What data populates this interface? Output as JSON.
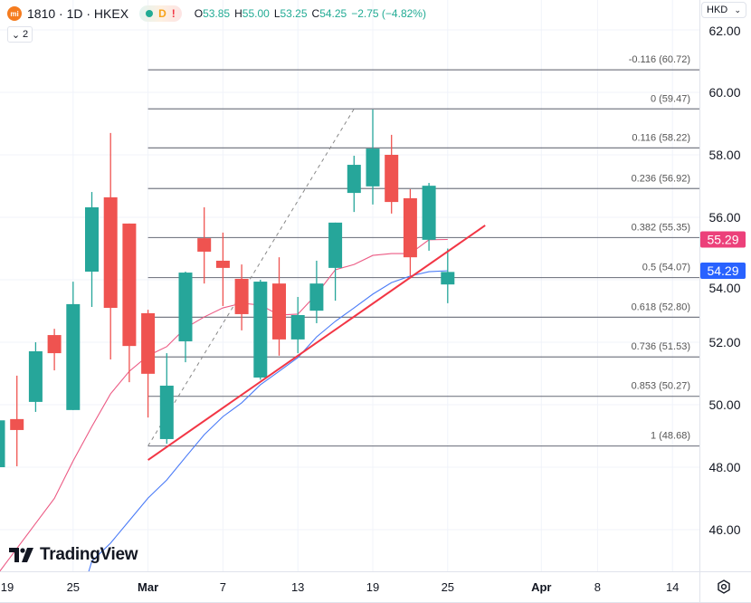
{
  "header": {
    "logo_text": "mi",
    "symbol": "1810 · 1D · HKEX",
    "status_badges": [
      "market-open-dot",
      "D",
      "!"
    ],
    "ohlc": {
      "o_label": "O",
      "o": "53.85",
      "h_label": "H",
      "h": "55.00",
      "l_label": "L",
      "l": "53.25",
      "c_label": "C",
      "c": "54.25",
      "change": "−2.75 (−4.82%)"
    },
    "collapse_count": "2"
  },
  "currency_select": "HKD",
  "watermark": "TradingView",
  "colors": {
    "up": "#26a69a",
    "down": "#ef5350",
    "ma_fast": "#ec5a84",
    "ma_slow": "#4a7bf7",
    "trendline": "#f23645",
    "fib": "#787b86",
    "tag_fast": "#ec407a",
    "tag_slow": "#2962ff"
  },
  "chart_data": {
    "type": "candlestick",
    "ylim": [
      45,
      62
    ],
    "y_ticks": [
      "46.00",
      "48.00",
      "50.00",
      "52.00",
      "54.00",
      "56.00",
      "58.00",
      "60.00",
      "62.00"
    ],
    "x_ticks": [
      {
        "date": "2025-02-19",
        "label": "19"
      },
      {
        "date": "2025-02-25",
        "label": "25"
      },
      {
        "date": "2025-03-03",
        "label": "Mar",
        "bold": true
      },
      {
        "date": "2025-03-07",
        "label": "7"
      },
      {
        "date": "2025-03-13",
        "label": "13"
      },
      {
        "date": "2025-03-19",
        "label": "19"
      },
      {
        "date": "2025-03-25",
        "label": "25"
      },
      {
        "date": "2025-04-01",
        "label": "Apr",
        "bold": true
      },
      {
        "date": "2025-04-08",
        "label": "8"
      },
      {
        "date": "2025-04-14",
        "label": "14"
      }
    ],
    "candles": [
      {
        "date": "2025-02-19",
        "o": 48.0,
        "h": 49.6,
        "l": 48.0,
        "c": 49.5
      },
      {
        "date": "2025-02-20",
        "o": 49.54,
        "h": 50.93,
        "l": 48.03,
        "c": 49.19
      },
      {
        "date": "2025-02-21",
        "o": 50.09,
        "h": 52.0,
        "l": 49.77,
        "c": 51.71
      },
      {
        "date": "2025-02-24",
        "o": 52.23,
        "h": 52.43,
        "l": 51.1,
        "c": 51.65
      },
      {
        "date": "2025-02-25",
        "o": 49.83,
        "h": 53.94,
        "l": 49.83,
        "c": 53.22
      },
      {
        "date": "2025-02-26",
        "o": 54.26,
        "h": 56.81,
        "l": 53.13,
        "c": 56.32
      },
      {
        "date": "2025-02-27",
        "o": 56.64,
        "h": 58.7,
        "l": 51.45,
        "c": 53.1
      },
      {
        "date": "2025-02-28",
        "o": 55.8,
        "h": 55.8,
        "l": 50.72,
        "c": 51.88
      },
      {
        "date": "2025-03-03",
        "o": 52.93,
        "h": 53.04,
        "l": 49.59,
        "c": 50.99
      },
      {
        "date": "2025-03-04",
        "o": 48.9,
        "h": 51.65,
        "l": 48.75,
        "c": 50.61
      },
      {
        "date": "2025-03-05",
        "o": 52.03,
        "h": 54.26,
        "l": 51.36,
        "c": 54.23
      },
      {
        "date": "2025-03-06",
        "o": 55.33,
        "h": 56.32,
        "l": 53.88,
        "c": 54.9
      },
      {
        "date": "2025-03-07",
        "o": 54.61,
        "h": 55.51,
        "l": 53.16,
        "c": 54.38
      },
      {
        "date": "2025-03-10",
        "o": 54.03,
        "h": 54.49,
        "l": 52.38,
        "c": 52.9
      },
      {
        "date": "2025-03-11",
        "o": 50.87,
        "h": 54.0,
        "l": 50.8,
        "c": 53.94
      },
      {
        "date": "2025-03-12",
        "o": 53.88,
        "h": 54.72,
        "l": 51.57,
        "c": 52.09
      },
      {
        "date": "2025-03-13",
        "o": 52.09,
        "h": 53.45,
        "l": 51.65,
        "c": 52.87
      },
      {
        "date": "2025-03-14",
        "o": 53.01,
        "h": 54.61,
        "l": 52.61,
        "c": 53.88
      },
      {
        "date": "2025-03-17",
        "o": 54.38,
        "h": 55.83,
        "l": 53.33,
        "c": 55.83
      },
      {
        "date": "2025-03-18",
        "o": 56.78,
        "h": 57.97,
        "l": 56.17,
        "c": 57.68
      },
      {
        "date": "2025-03-19",
        "o": 56.99,
        "h": 59.45,
        "l": 56.41,
        "c": 58.2
      },
      {
        "date": "2025-03-20",
        "o": 58.0,
        "h": 58.64,
        "l": 56.12,
        "c": 56.49
      },
      {
        "date": "2025-03-21",
        "o": 56.61,
        "h": 56.9,
        "l": 54.12,
        "c": 54.72
      },
      {
        "date": "2025-03-24",
        "o": 55.28,
        "h": 57.1,
        "l": 54.93,
        "c": 57.01
      },
      {
        "date": "2025-03-25",
        "o": 53.85,
        "h": 55.0,
        "l": 53.25,
        "c": 54.25
      }
    ],
    "ma_fast": {
      "last": "55.29",
      "values": [
        44.6,
        45.4,
        46.2,
        47.0,
        48.2,
        49.3,
        50.35,
        51.07,
        51.57,
        51.86,
        52.46,
        52.81,
        53.1,
        53.25,
        53.19,
        52.87,
        52.9,
        53.54,
        54.32,
        54.49,
        54.78,
        54.84,
        54.84,
        55.28,
        55.29
      ]
    },
    "ma_slow": {
      "last": "54.29",
      "values": [
        null,
        null,
        null,
        null,
        43.0,
        44.99,
        45.57,
        46.29,
        47.01,
        47.59,
        48.32,
        49.04,
        49.62,
        50.06,
        50.64,
        51.07,
        51.51,
        52.17,
        52.67,
        53.1,
        53.54,
        53.91,
        54.12,
        54.26,
        54.29
      ]
    },
    "trendline": {
      "start": {
        "date": "2025-03-03",
        "price": 48.23
      },
      "end": {
        "date": "2025-03-27",
        "price": 55.74
      }
    },
    "fib": {
      "start": {
        "date": "2025-03-03",
        "price": 48.68
      },
      "end": {
        "date": "2025-03-18",
        "price": 59.47
      },
      "levels": [
        {
          "ratio": "-0.116",
          "price": 60.72
        },
        {
          "ratio": "0",
          "price": 59.47
        },
        {
          "ratio": "0.116",
          "price": 58.22
        },
        {
          "ratio": "0.236",
          "price": 56.92
        },
        {
          "ratio": "0.382",
          "price": 55.35
        },
        {
          "ratio": "0.5",
          "price": 54.07
        },
        {
          "ratio": "0.618",
          "price": 52.8
        },
        {
          "ratio": "0.736",
          "price": 51.53
        },
        {
          "ratio": "0.853",
          "price": 50.27
        },
        {
          "ratio": "1",
          "price": 48.68
        }
      ]
    }
  }
}
